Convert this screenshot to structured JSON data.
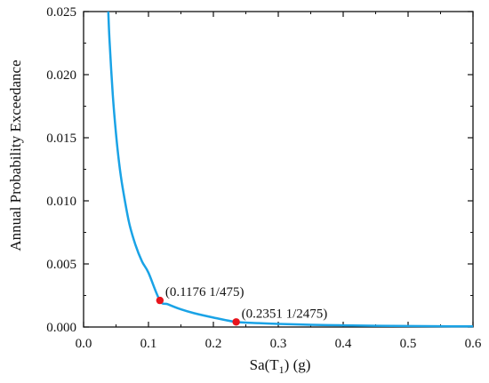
{
  "chart_data": {
    "type": "line",
    "xlabel_main": "Sa(T",
    "xlabel_sub": "1",
    "xlabel_tail": ") (g)",
    "ylabel": "Annual Probability Exceedance",
    "xlim": [
      0.0,
      0.6
    ],
    "ylim": [
      0.0,
      0.025
    ],
    "x_ticks": [
      "0.0",
      "0.1",
      "0.2",
      "0.3",
      "0.4",
      "0.5",
      "0.6"
    ],
    "y_ticks": [
      "0.000",
      "0.005",
      "0.010",
      "0.015",
      "0.020",
      "0.025"
    ],
    "grid": false,
    "series": [
      {
        "color": "#1aa3e6",
        "x": [
          0.035,
          0.04,
          0.045,
          0.05,
          0.055,
          0.06,
          0.07,
          0.08,
          0.09,
          0.1,
          0.1176,
          0.13,
          0.15,
          0.17,
          0.2,
          0.2351,
          0.27,
          0.3,
          0.35,
          0.4,
          0.45,
          0.5,
          0.55,
          0.6
        ],
        "y": [
          0.0287,
          0.0227,
          0.0184,
          0.0153,
          0.0129,
          0.0111,
          0.0083,
          0.0065,
          0.0052,
          0.0043,
          0.0021,
          0.0018,
          0.0014,
          0.0011,
          0.00075,
          0.000404,
          0.00031,
          0.00025,
          0.00018,
          0.000135,
          0.0001,
          8e-05,
          6e-05,
          5e-05
        ]
      }
    ],
    "points": [
      {
        "x": 0.1176,
        "y": 0.002105,
        "label": "(0.1176  1/475)",
        "color": "#e8141c"
      },
      {
        "x": 0.2351,
        "y": 0.000404,
        "label": "(0.2351  1/2475)",
        "color": "#e8141c"
      }
    ]
  }
}
